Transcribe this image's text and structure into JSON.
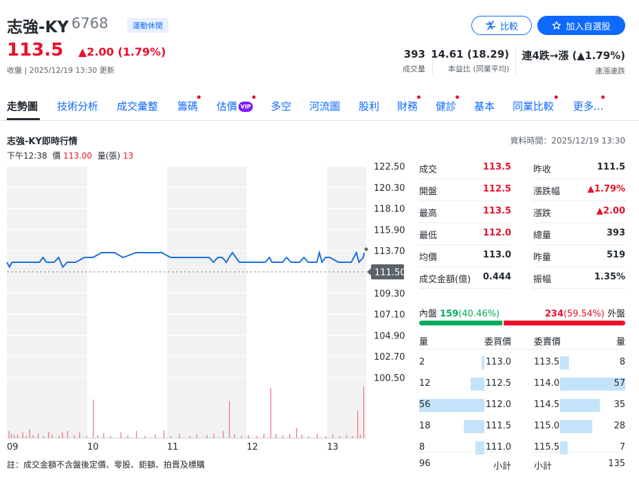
{
  "header": {
    "name": "志強-KY",
    "code": "6768",
    "industry_tag": "運動休閒",
    "price": "113.5",
    "change": "▲2.00 (1.79%)",
    "close_time": "收盤 | 2025/12/19 13:30 更新",
    "compare_label": "比較",
    "watchlist_label": "加入自選股"
  },
  "stats": [
    {
      "value": "393",
      "label": "成交量"
    },
    {
      "value": "14.61 (18.29)",
      "label": "本益比 (同業平均)"
    },
    {
      "value": "連4跌→漲 (▲1.79%)",
      "label": "連漲連跌"
    }
  ],
  "tabs": [
    {
      "label": "走勢圖",
      "dot": false
    },
    {
      "label": "技術分析",
      "dot": false
    },
    {
      "label": "成交彙整",
      "dot": false
    },
    {
      "label": "籌碼",
      "dot": true
    },
    {
      "label": "估價",
      "dot": true,
      "vip": "VIP"
    },
    {
      "label": "多空",
      "dot": false
    },
    {
      "label": "河流圖",
      "dot": false
    },
    {
      "label": "股利",
      "dot": false
    },
    {
      "label": "財務",
      "dot": true
    },
    {
      "label": "健診",
      "dot": true
    },
    {
      "label": "基本",
      "dot": false
    },
    {
      "label": "同業比較",
      "dot": true
    },
    {
      "label": "更多...",
      "dot": true
    }
  ],
  "realtime": {
    "title": "志強-KY即時行情",
    "data_time": "資料時間：2025/12/19 13:30",
    "hover_time": "下午12:38",
    "hover_price_label": "價",
    "hover_price": "113.00",
    "hover_vol_label": "量(張)",
    "hover_vol": "13"
  },
  "chart_data": {
    "type": "line",
    "y_ticks": [
      "122.50",
      "120.30",
      "118.10",
      "115.90",
      "113.70",
      "111.50",
      "109.30",
      "107.10",
      "104.90",
      "102.70",
      "100.50"
    ],
    "ylim": [
      100.5,
      122.5
    ],
    "x_ticks": [
      "09",
      "10",
      "11",
      "12",
      "13"
    ],
    "reference_price": 111.5,
    "reference_label": "111.50",
    "price_series": [
      [
        0,
        112.5
      ],
      [
        3,
        112
      ],
      [
        6,
        112.5
      ],
      [
        15,
        112.5
      ],
      [
        25,
        112.5
      ],
      [
        38,
        112.5
      ],
      [
        42,
        113
      ],
      [
        46,
        112.5
      ],
      [
        50,
        112.5
      ],
      [
        55,
        112.5
      ],
      [
        60,
        113
      ],
      [
        65,
        112
      ],
      [
        70,
        112.5
      ],
      [
        80,
        112.5
      ],
      [
        90,
        113
      ],
      [
        100,
        113
      ],
      [
        110,
        113.5
      ],
      [
        125,
        113.5
      ],
      [
        135,
        113
      ],
      [
        150,
        113.5
      ],
      [
        160,
        113.5
      ],
      [
        180,
        113.5
      ],
      [
        190,
        113
      ],
      [
        200,
        113
      ],
      [
        210,
        113
      ],
      [
        220,
        113
      ],
      [
        235,
        113
      ],
      [
        240,
        112.5
      ],
      [
        245,
        113
      ],
      [
        250,
        113
      ],
      [
        255,
        112.5
      ],
      [
        258,
        113
      ],
      [
        262,
        113.5
      ],
      [
        266,
        113
      ],
      [
        270,
        112.5
      ],
      [
        285,
        112.5
      ],
      [
        300,
        112.5
      ],
      [
        305,
        113
      ],
      [
        308,
        112.5
      ],
      [
        320,
        112.5
      ],
      [
        325,
        113
      ],
      [
        330,
        112.5
      ],
      [
        340,
        112.5
      ],
      [
        345,
        113
      ],
      [
        350,
        112.5
      ],
      [
        360,
        112.5
      ],
      [
        363,
        113.5
      ],
      [
        366,
        112.5
      ],
      [
        370,
        113
      ],
      [
        375,
        113
      ],
      [
        385,
        112.5
      ],
      [
        395,
        112.5
      ],
      [
        400,
        112.5
      ],
      [
        406,
        113.5
      ],
      [
        409,
        112.5
      ],
      [
        414,
        113
      ],
      [
        415,
        113.5
      ]
    ],
    "volume_series": [
      [
        2,
        10
      ],
      [
        5,
        6
      ],
      [
        8,
        4
      ],
      [
        12,
        5
      ],
      [
        18,
        8
      ],
      [
        22,
        3
      ],
      [
        26,
        12
      ],
      [
        30,
        4
      ],
      [
        36,
        6
      ],
      [
        42,
        3
      ],
      [
        48,
        9
      ],
      [
        52,
        5
      ],
      [
        60,
        3
      ],
      [
        64,
        8
      ],
      [
        70,
        10
      ],
      [
        78,
        4
      ],
      [
        84,
        8
      ],
      [
        92,
        3
      ],
      [
        100,
        54
      ],
      [
        105,
        4
      ],
      [
        112,
        7
      ],
      [
        120,
        3
      ],
      [
        132,
        8
      ],
      [
        140,
        4
      ],
      [
        150,
        10
      ],
      [
        160,
        3
      ],
      [
        172,
        5
      ],
      [
        182,
        11
      ],
      [
        190,
        3
      ],
      [
        200,
        6
      ],
      [
        212,
        3
      ],
      [
        220,
        5
      ],
      [
        232,
        4
      ],
      [
        240,
        6
      ],
      [
        251,
        10
      ],
      [
        258,
        52
      ],
      [
        264,
        5
      ],
      [
        272,
        3
      ],
      [
        280,
        4
      ],
      [
        290,
        3
      ],
      [
        298,
        6
      ],
      [
        306,
        70
      ],
      [
        312,
        6
      ],
      [
        320,
        4
      ],
      [
        328,
        6
      ],
      [
        336,
        14
      ],
      [
        342,
        5
      ],
      [
        350,
        3
      ],
      [
        360,
        6
      ],
      [
        370,
        3
      ],
      [
        378,
        5
      ],
      [
        386,
        3
      ],
      [
        394,
        4
      ],
      [
        401,
        3
      ],
      [
        407,
        38
      ],
      [
        410,
        5
      ],
      [
        414,
        72
      ]
    ],
    "volume_max": 80,
    "x_total": 415
  },
  "quote": {
    "left": [
      {
        "label": "成交",
        "value": "113.5",
        "color": "red"
      },
      {
        "label": "開盤",
        "value": "112.5",
        "color": "red"
      },
      {
        "label": "最高",
        "value": "113.5",
        "color": "red"
      },
      {
        "label": "最低",
        "value": "112.0",
        "color": "red"
      },
      {
        "label": "均價",
        "value": "113.0",
        "color": "black"
      },
      {
        "label": "成交金額(億)",
        "value": "0.444",
        "color": "black"
      }
    ],
    "right": [
      {
        "label": "昨收",
        "value": "111.5",
        "color": "black"
      },
      {
        "label": "漲跌幅",
        "value": "▲1.79%",
        "color": "red"
      },
      {
        "label": "漲跌",
        "value": "▲2.00",
        "color": "red"
      },
      {
        "label": "總量",
        "value": "393",
        "color": "black"
      },
      {
        "label": "昨量",
        "value": "519",
        "color": "black"
      },
      {
        "label": "振幅",
        "value": "1.35%",
        "color": "black"
      }
    ]
  },
  "bidask": {
    "inner_label": "內盤",
    "inner_vol": "159",
    "inner_pct": "(40.46%)",
    "outer_vol": "234",
    "outer_pct": "(59.54%)",
    "outer_label": "外盤",
    "inner_fraction": 0.4046
  },
  "orderbook": {
    "h_vol": "量",
    "h_bid": "委買價",
    "h_ask": "委賣價",
    "h_vol2": "量",
    "bids": [
      {
        "vol": "2",
        "price": "113.0",
        "fraction": 0.04
      },
      {
        "vol": "12",
        "price": "112.5",
        "fraction": 0.21
      },
      {
        "vol": "56",
        "price": "112.0",
        "fraction": 1.0
      },
      {
        "vol": "18",
        "price": "111.5",
        "fraction": 0.32
      },
      {
        "vol": "8",
        "price": "111.0",
        "fraction": 0.14
      }
    ],
    "asks": [
      {
        "price": "113.5",
        "vol": "8",
        "fraction": 0.14
      },
      {
        "price": "114.0",
        "vol": "57",
        "fraction": 1.0
      },
      {
        "price": "114.5",
        "vol": "35",
        "fraction": 0.61
      },
      {
        "price": "115.0",
        "vol": "28",
        "fraction": 0.49
      },
      {
        "price": "115.5",
        "vol": "7",
        "fraction": 0.12
      }
    ],
    "bid_total": "96",
    "subtotal_label": "小計",
    "ask_total": "135"
  },
  "footnote": "註：成交金額不含盤後定價、零股、鉅額、拍賣及標購",
  "colors": {
    "red": "#eb0f29",
    "green": "#00ab5e",
    "blue": "#0f69ff",
    "line": "#1a6fdf"
  }
}
